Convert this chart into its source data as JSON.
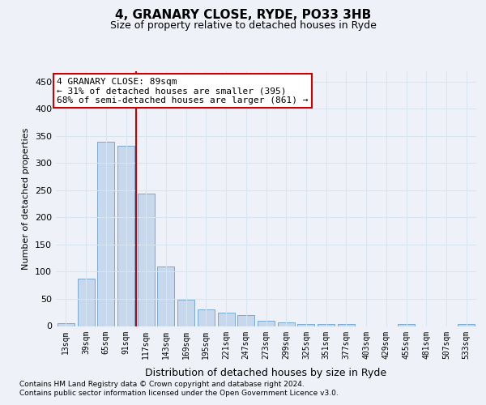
{
  "title1": "4, GRANARY CLOSE, RYDE, PO33 3HB",
  "title2": "Size of property relative to detached houses in Ryde",
  "xlabel": "Distribution of detached houses by size in Ryde",
  "ylabel": "Number of detached properties",
  "categories": [
    "13sqm",
    "39sqm",
    "65sqm",
    "91sqm",
    "117sqm",
    "143sqm",
    "169sqm",
    "195sqm",
    "221sqm",
    "247sqm",
    "273sqm",
    "299sqm",
    "325sqm",
    "351sqm",
    "377sqm",
    "403sqm",
    "429sqm",
    "455sqm",
    "481sqm",
    "507sqm",
    "533sqm"
  ],
  "values": [
    5,
    88,
    340,
    332,
    244,
    110,
    49,
    30,
    24,
    20,
    10,
    6,
    4,
    4,
    3,
    0,
    0,
    4,
    0,
    0,
    3
  ],
  "bar_color": "#c8d8ec",
  "bar_edge_color": "#7aaad0",
  "vline_x": 3.5,
  "vline_color": "#cc0000",
  "ylim": [
    0,
    470
  ],
  "yticks": [
    0,
    50,
    100,
    150,
    200,
    250,
    300,
    350,
    400,
    450
  ],
  "annotation_text": "4 GRANARY CLOSE: 89sqm\n← 31% of detached houses are smaller (395)\n68% of semi-detached houses are larger (861) →",
  "annotation_box_color": "#ffffff",
  "annotation_box_edge": "#cc0000",
  "footer1": "Contains HM Land Registry data © Crown copyright and database right 2024.",
  "footer2": "Contains public sector information licensed under the Open Government Licence v3.0.",
  "background_color": "#eef2f8",
  "grid_color": "#d8e4f0"
}
